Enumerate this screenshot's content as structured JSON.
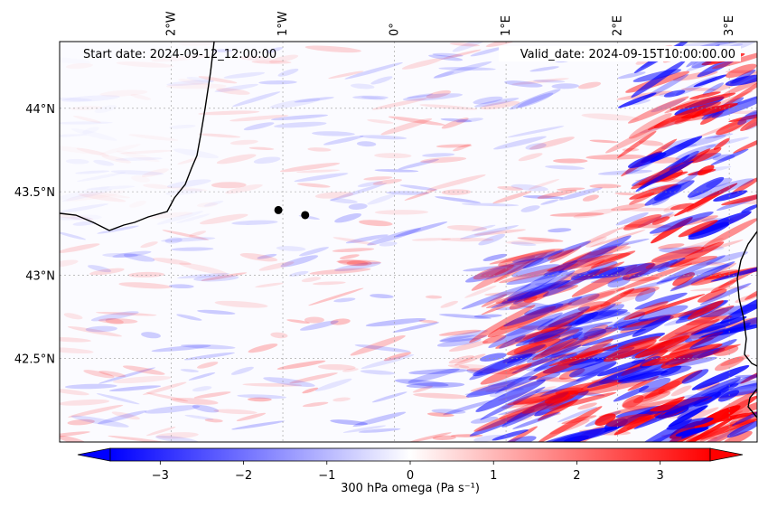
{
  "map": {
    "start_date": "Start date: 2024-09-12_12:00:00",
    "valid_date": "Valid_date: 2024-09-15T10:00:00.00",
    "lon_labels": [
      "2°W",
      "1°W",
      "0°",
      "1°E",
      "2°E",
      "3°E"
    ],
    "lat_labels": [
      "44°N",
      "43.5°N",
      "43°N",
      "42.5°N"
    ],
    "extent": {
      "lon": [
        -3.0,
        3.25
      ],
      "lat": [
        42.0,
        44.4
      ]
    },
    "markers": [
      {
        "lon": -1.04,
        "lat": 43.39
      },
      {
        "lon": -0.8,
        "lat": 43.36
      }
    ],
    "colors": {
      "negative": "#0000ff",
      "positive": "#ff0000",
      "neutral": "#ffffff",
      "coast": "#000000"
    }
  },
  "colorbar": {
    "label": "300 hPa omega (Pa s⁻¹)",
    "ticks": [
      "−3",
      "−2",
      "−1",
      "0",
      "1",
      "2",
      "3"
    ],
    "range": [
      -3.6,
      3.6
    ],
    "cmap": "bwr",
    "extend": "both"
  }
}
